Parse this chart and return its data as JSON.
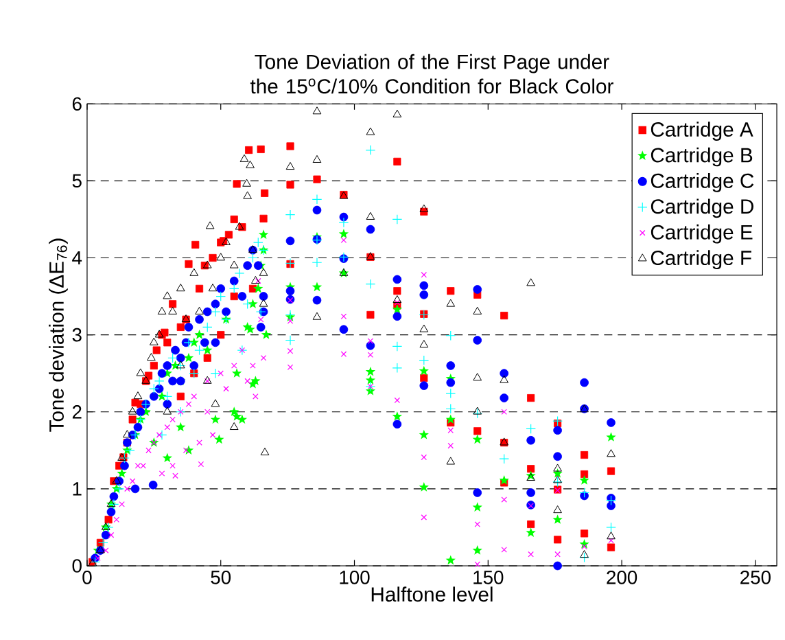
{
  "chart_data": {
    "type": "scatter",
    "title": "Tone Deviation of the First Page under the 15$^{o}$C/10% Condition for Black Color",
    "xlabel": "Halftone level",
    "ylabel": "Tone deviation (ΔE$_{76}$)",
    "xlim": [
      0,
      258
    ],
    "ylim": [
      0,
      6
    ],
    "xticks": [
      0,
      50,
      100,
      150,
      200,
      250
    ],
    "yticks": [
      0,
      1,
      2,
      3,
      4,
      5,
      6
    ],
    "grid": "y",
    "legend": "top right",
    "series": [
      {
        "name": "Cartridge A",
        "color": "#ff0000",
        "marker": "square",
        "x": [
          2,
          5,
          8,
          10,
          12,
          13.6,
          15,
          17,
          18,
          20,
          22,
          23,
          25,
          26,
          28,
          29,
          30,
          32,
          35,
          37,
          38,
          40.5,
          42,
          44,
          47,
          50,
          51,
          53,
          55,
          56,
          58,
          60.5,
          65,
          66.4,
          66,
          62,
          55,
          50,
          45,
          40,
          35,
          76,
          76,
          76,
          86,
          96,
          106,
          106,
          116,
          116,
          116,
          126,
          126,
          126,
          136,
          136,
          146,
          146,
          156,
          156,
          156,
          166,
          166,
          166,
          176,
          176,
          176,
          186,
          186,
          186,
          196,
          196
        ],
        "values": [
          0.05,
          0.3,
          0.6,
          1.1,
          1.3,
          1.41,
          1.6,
          1.9,
          2.12,
          2.1,
          2.4,
          2.47,
          2.6,
          2.8,
          3.0,
          3.03,
          2.9,
          3.4,
          3.1,
          3.2,
          3.92,
          4.17,
          3.6,
          3.9,
          4.0,
          4.2,
          4.22,
          4.3,
          4.5,
          4.96,
          4.4,
          5.4,
          5.41,
          4.84,
          4.51,
          3.6,
          3.5,
          3.0,
          2.7,
          2.5,
          2.2,
          5.45,
          4.95,
          3.92,
          5.02,
          4.82,
          4.01,
          3.26,
          5.25,
          3.57,
          3.38,
          4.6,
          3.27,
          2.44,
          3.57,
          1.86,
          3.52,
          1.75,
          3.25,
          1.6,
          1.08,
          2.18,
          1.26,
          0.54,
          1.85,
          0.99,
          0.34,
          1.44,
          1.19,
          0.42,
          1.23,
          0.24
        ]
      },
      {
        "name": "Cartridge B",
        "color": "#00ff00",
        "marker": "star",
        "x": [
          4,
          7,
          9,
          11,
          13,
          15,
          18,
          20,
          22,
          25,
          28,
          30,
          33,
          35,
          38,
          40,
          42,
          45,
          48,
          49.4,
          52,
          55,
          56,
          56,
          58,
          60,
          61,
          62,
          62,
          63,
          64,
          65,
          66,
          66,
          67,
          35,
          38,
          30,
          76,
          76,
          86,
          86,
          96,
          96,
          106,
          106,
          106,
          116,
          116,
          126,
          126,
          126,
          136,
          136,
          136,
          146,
          146,
          146,
          156,
          166,
          166,
          176,
          176,
          186,
          186,
          196
        ],
        "values": [
          0.2,
          0.5,
          0.8,
          1.0,
          1.2,
          1.5,
          1.7,
          1.9,
          2.0,
          1.6,
          2.2,
          2.5,
          2.6,
          2.4,
          2.7,
          2.9,
          3.0,
          2.8,
          1.9,
          1.64,
          3.2,
          2.0,
          2.5,
          1.94,
          1.9,
          3.1,
          3.07,
          3.4,
          2.36,
          2.4,
          3.6,
          3.9,
          4.1,
          4.3,
          3.0,
          1.8,
          1.5,
          1.4,
          3.62,
          3.23,
          4.27,
          3.62,
          4.31,
          3.8,
          2.52,
          2.41,
          2.27,
          3.33,
          1.94,
          2.53,
          1.7,
          1.02,
          2.43,
          1.9,
          0.07,
          1.64,
          0.76,
          0.2,
          1.11,
          0.43,
          1.17,
          1.2,
          0.6,
          1.11,
          0.28,
          1.67
        ]
      },
      {
        "name": "Cartridge C",
        "color": "#0000ff",
        "marker": "circle",
        "x": [
          3,
          5,
          7,
          9,
          10,
          12,
          14,
          15,
          17,
          18,
          19,
          20,
          22,
          24.7,
          25,
          27,
          28,
          30,
          30,
          32,
          33,
          35,
          35,
          37,
          38,
          40,
          42,
          44,
          45,
          48,
          48,
          50,
          52,
          55,
          58,
          60,
          62,
          64,
          66,
          66,
          65,
          76,
          76,
          76,
          86,
          86,
          86,
          96,
          96,
          96,
          106,
          106,
          116,
          116,
          116,
          126,
          126,
          126,
          136,
          136,
          146,
          146,
          146,
          156,
          156,
          166,
          166,
          166,
          176,
          176,
          176,
          186,
          186,
          186,
          196,
          196,
          196
        ],
        "values": [
          0.1,
          0.2,
          0.4,
          0.7,
          0.9,
          1.1,
          1.3,
          1.6,
          1.7,
          1.0,
          1.8,
          2.0,
          2.1,
          1.05,
          2.2,
          2.3,
          2.5,
          2.6,
          2.1,
          2.4,
          2.8,
          2.7,
          2.4,
          2.9,
          3.1,
          2.6,
          3.2,
          2.9,
          3.3,
          3.4,
          2.9,
          3.6,
          3.3,
          3.7,
          3.5,
          3.9,
          4.1,
          3.9,
          3.5,
          3.3,
          3.1,
          4.22,
          3.57,
          3.46,
          4.62,
          4.24,
          3.45,
          4.53,
          3.99,
          3.07,
          4.37,
          2.86,
          3.72,
          3.24,
          1.84,
          3.64,
          3.52,
          2.34,
          2.6,
          2.38,
          3.59,
          2.93,
          0.95,
          2.5,
          2.18,
          1.63,
          0.95,
          0.79,
          1.76,
          1.42,
          0,
          2.38,
          2.04,
          0.91,
          1.86,
          0.88,
          0.78
        ]
      },
      {
        "name": "Cartridge D",
        "color": "#00ffff",
        "marker": "plus",
        "x": [
          3,
          6,
          8,
          10,
          12,
          14,
          16,
          18,
          20,
          22,
          25,
          27,
          28,
          30,
          32,
          35,
          35,
          38,
          40,
          42,
          45,
          48,
          48,
          50,
          52,
          55,
          57,
          58,
          60,
          62,
          64,
          65,
          66,
          76,
          76,
          76,
          76,
          86,
          86,
          86,
          96,
          96,
          106,
          106,
          106,
          116,
          116,
          116,
          126,
          126,
          136,
          136,
          136,
          146,
          156,
          166,
          176,
          176,
          186,
          186,
          196,
          196
        ],
        "values": [
          0.05,
          0.3,
          0.5,
          0.8,
          1.0,
          1.4,
          1.5,
          1.7,
          1.9,
          2.1,
          2.3,
          2.4,
          1.7,
          2.2,
          2.7,
          2.6,
          2.0,
          2.9,
          2.5,
          2.8,
          3.1,
          3.3,
          2.5,
          3.5,
          3.2,
          3.6,
          3.8,
          2.8,
          3.4,
          4.0,
          4.2,
          3.3,
          4.1,
          4.56,
          3.93,
          3.26,
          2.93,
          4.76,
          4.23,
          3.94,
          4.46,
          4.01,
          5.4,
          3.66,
          2.33,
          4.5,
          2.85,
          2.57,
          3.26,
          2.67,
          2.99,
          2.24,
          2.04,
          1.98,
          1.39,
          1.78,
          1.88,
          1.09,
          0.95,
          0.11,
          0.85,
          0.5
        ]
      },
      {
        "name": "Cartridge E",
        "color": "#ff00ff",
        "marker": "cross",
        "x": [
          4,
          7,
          9,
          11,
          13,
          15,
          17,
          19,
          21,
          23,
          25,
          27,
          28,
          30,
          32,
          32,
          33,
          35,
          37,
          38,
          40,
          42,
          42.6,
          45,
          45,
          47,
          50,
          52,
          55,
          58,
          60,
          62,
          63,
          64,
          65,
          66,
          76,
          76,
          76,
          76,
          96,
          96,
          96,
          106,
          106,
          106,
          116,
          116,
          126,
          126,
          126,
          136,
          136,
          146,
          146,
          156,
          156,
          156,
          166,
          166,
          176,
          176,
          186,
          196
        ],
        "values": [
          0.1,
          0.2,
          0.4,
          0.6,
          0.8,
          1.0,
          1.1,
          1.3,
          1.3,
          1.5,
          1.6,
          1.7,
          1.2,
          1.8,
          1.9,
          1.3,
          1.17,
          2.0,
          1.5,
          2.1,
          2.2,
          1.6,
          1.32,
          2.4,
          2.0,
          1.7,
          2.5,
          2.3,
          2.6,
          2.8,
          2.4,
          2.6,
          2.2,
          3.7,
          3.2,
          2.7,
          3.45,
          3.18,
          2.79,
          2.58,
          4.23,
          3.24,
          2.75,
          2.92,
          2.74,
          2.33,
          3.42,
          2.15,
          3.78,
          1.41,
          0.63,
          1.76,
          1.56,
          0.54,
          0.02,
          2.0,
          0.86,
          0.21,
          0.78,
          0.15,
          0.15,
          0.98,
          0.25,
          0.33
        ]
      },
      {
        "name": "Cartridge F",
        "color": "#000000",
        "marker": "triangle",
        "x": [
          2,
          5,
          7,
          9,
          11,
          13,
          15,
          17,
          19,
          20,
          22,
          24,
          25,
          27,
          28,
          30,
          30,
          32,
          35,
          35,
          37,
          40,
          42,
          45,
          45,
          46,
          47,
          48,
          50,
          52,
          55,
          55,
          57,
          58.8,
          59.7,
          60,
          61,
          62,
          63,
          66,
          66,
          66.5,
          76,
          86,
          86,
          86,
          96,
          96,
          106,
          106,
          106,
          116,
          116,
          126,
          126,
          126,
          136,
          136,
          146,
          146,
          146,
          156,
          156,
          166,
          166,
          176,
          176,
          176,
          186,
          186,
          196,
          196
        ],
        "values": [
          0.03,
          0.2,
          0.5,
          0.8,
          1.1,
          1.4,
          1.7,
          2.0,
          2.2,
          2.5,
          2.4,
          2.7,
          2.9,
          3.0,
          3.3,
          3.5,
          2.0,
          3.3,
          3.6,
          2.6,
          3.2,
          3.8,
          3.3,
          3.9,
          2.4,
          4.41,
          3.6,
          2.1,
          4.0,
          4.2,
          3.9,
          1.8,
          4.4,
          5.28,
          4.96,
          4.8,
          5.2,
          4.1,
          3.7,
          3.8,
          3.4,
          1.47,
          5.18,
          5.9,
          5.27,
          3.23,
          4.8,
          3.8,
          5.63,
          4.53,
          4.01,
          5.86,
          3.45,
          4.63,
          3.07,
          2.87,
          3.4,
          1.35,
          3.3,
          2.44,
          2.0,
          2.41,
          1.6,
          3.67,
          1.14,
          1.26,
          1.11,
          0.72,
          2.03,
          0.14,
          1.45,
          0.38
        ]
      }
    ]
  }
}
